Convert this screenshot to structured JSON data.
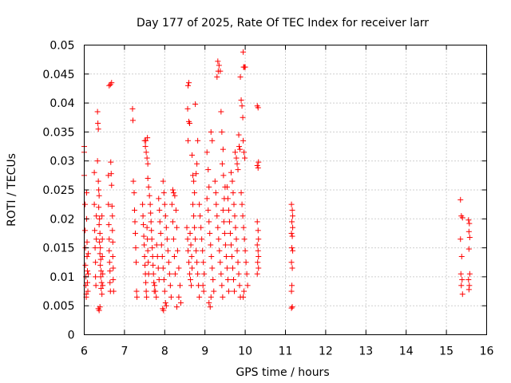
{
  "chart_data": {
    "type": "scatter",
    "title": "Day 177 of 2025, Rate Of TEC Index for receiver larr",
    "xlabel": "GPS time / hours",
    "ylabel": "ROTI / TECUs",
    "xlim": [
      6,
      16
    ],
    "ylim": [
      0,
      0.05
    ],
    "x_ticks": [
      "6",
      "7",
      "8",
      "9",
      "10",
      "11",
      "12",
      "13",
      "14",
      "15",
      "16"
    ],
    "y_ticks": [
      "0",
      "0.005",
      "0.01",
      "0.015",
      "0.02",
      "0.025",
      "0.03",
      "0.035",
      "0.04",
      "0.045",
      "0.05"
    ],
    "grid": true,
    "marker": "+",
    "color": "#ff0000",
    "points": [
      [
        6.0,
        0.0325
      ],
      [
        6.0,
        0.0315
      ],
      [
        6.0,
        0.0275
      ],
      [
        6.02,
        0.0225
      ],
      [
        6.02,
        0.018
      ],
      [
        6.03,
        0.015
      ],
      [
        6.03,
        0.012
      ],
      [
        6.04,
        0.01
      ],
      [
        6.04,
        0.0085
      ],
      [
        6.05,
        0.007
      ],
      [
        6.05,
        0.0065
      ],
      [
        6.06,
        0.0245
      ],
      [
        6.06,
        0.02
      ],
      [
        6.07,
        0.016
      ],
      [
        6.07,
        0.0135
      ],
      [
        6.08,
        0.011
      ],
      [
        6.08,
        0.009
      ],
      [
        6.09,
        0.0075
      ],
      [
        6.1,
        0.014
      ],
      [
        6.1,
        0.0105
      ],
      [
        6.25,
        0.028
      ],
      [
        6.25,
        0.0225
      ],
      [
        6.26,
        0.018
      ],
      [
        6.27,
        0.015
      ],
      [
        6.28,
        0.0125
      ],
      [
        6.28,
        0.01
      ],
      [
        6.29,
        0.0085
      ],
      [
        6.3,
        0.0205
      ],
      [
        6.3,
        0.0165
      ],
      [
        6.33,
        0.0385
      ],
      [
        6.34,
        0.0365
      ],
      [
        6.35,
        0.0355
      ],
      [
        6.33,
        0.03
      ],
      [
        6.35,
        0.0265
      ],
      [
        6.36,
        0.025
      ],
      [
        6.37,
        0.024
      ],
      [
        6.36,
        0.022
      ],
      [
        6.38,
        0.02
      ],
      [
        6.37,
        0.019
      ],
      [
        6.39,
        0.0175
      ],
      [
        6.38,
        0.016
      ],
      [
        6.4,
        0.015
      ],
      [
        6.39,
        0.014
      ],
      [
        6.41,
        0.013
      ],
      [
        6.4,
        0.012
      ],
      [
        6.42,
        0.011
      ],
      [
        6.41,
        0.01
      ],
      [
        6.43,
        0.009
      ],
      [
        6.42,
        0.008
      ],
      [
        6.44,
        0.007
      ],
      [
        6.35,
        0.0045
      ],
      [
        6.37,
        0.0042
      ],
      [
        6.39,
        0.0048
      ],
      [
        6.44,
        0.0205
      ],
      [
        6.45,
        0.0165
      ],
      [
        6.45,
        0.0135
      ],
      [
        6.46,
        0.0105
      ],
      [
        6.46,
        0.0085
      ],
      [
        6.6,
        0.0275
      ],
      [
        6.6,
        0.0225
      ],
      [
        6.61,
        0.019
      ],
      [
        6.62,
        0.0165
      ],
      [
        6.62,
        0.0145
      ],
      [
        6.63,
        0.0125
      ],
      [
        6.64,
        0.011
      ],
      [
        6.64,
        0.009
      ],
      [
        6.65,
        0.0075
      ],
      [
        6.62,
        0.043
      ],
      [
        6.65,
        0.0432
      ],
      [
        6.68,
        0.0435
      ],
      [
        6.66,
        0.0298
      ],
      [
        6.67,
        0.0278
      ],
      [
        6.68,
        0.0258
      ],
      [
        6.69,
        0.0222
      ],
      [
        6.7,
        0.0205
      ],
      [
        6.7,
        0.018
      ],
      [
        6.71,
        0.016
      ],
      [
        6.71,
        0.0135
      ],
      [
        6.72,
        0.0115
      ],
      [
        6.72,
        0.0095
      ],
      [
        6.73,
        0.0075
      ],
      [
        7.2,
        0.039
      ],
      [
        7.21,
        0.037
      ],
      [
        7.22,
        0.0265
      ],
      [
        7.24,
        0.0245
      ],
      [
        7.25,
        0.0215
      ],
      [
        7.26,
        0.0195
      ],
      [
        7.27,
        0.0175
      ],
      [
        7.28,
        0.015
      ],
      [
        7.29,
        0.0125
      ],
      [
        7.3,
        0.0075
      ],
      [
        7.31,
        0.0065
      ],
      [
        7.45,
        0.0225
      ],
      [
        7.46,
        0.0205
      ],
      [
        7.47,
        0.019
      ],
      [
        7.48,
        0.017
      ],
      [
        7.49,
        0.0155
      ],
      [
        7.5,
        0.0135
      ],
      [
        7.51,
        0.012
      ],
      [
        7.52,
        0.0105
      ],
      [
        7.53,
        0.009
      ],
      [
        7.54,
        0.0075
      ],
      [
        7.55,
        0.0065
      ],
      [
        7.56,
        0.0185
      ],
      [
        7.57,
        0.0165
      ],
      [
        7.58,
        0.0145
      ],
      [
        7.59,
        0.0125
      ],
      [
        7.6,
        0.0105
      ],
      [
        7.5,
        0.0335
      ],
      [
        7.52,
        0.0325
      ],
      [
        7.54,
        0.0315
      ],
      [
        7.56,
        0.0305
      ],
      [
        7.58,
        0.0295
      ],
      [
        7.53,
        0.0335
      ],
      [
        7.57,
        0.034
      ],
      [
        7.58,
        0.027
      ],
      [
        7.6,
        0.0255
      ],
      [
        7.62,
        0.024
      ],
      [
        7.64,
        0.0225
      ],
      [
        7.65,
        0.021
      ],
      [
        7.66,
        0.0195
      ],
      [
        7.67,
        0.018
      ],
      [
        7.68,
        0.0165
      ],
      [
        7.69,
        0.015
      ],
      [
        7.7,
        0.0135
      ],
      [
        7.71,
        0.012
      ],
      [
        7.72,
        0.0105
      ],
      [
        7.73,
        0.009
      ],
      [
        7.74,
        0.0075
      ],
      [
        7.75,
        0.0085
      ],
      [
        7.77,
        0.0075
      ],
      [
        7.79,
        0.0065
      ],
      [
        7.8,
        0.0155
      ],
      [
        7.82,
        0.0135
      ],
      [
        7.84,
        0.0115
      ],
      [
        7.86,
        0.0095
      ],
      [
        7.85,
        0.0235
      ],
      [
        7.87,
        0.0215
      ],
      [
        7.88,
        0.0195
      ],
      [
        7.9,
        0.0175
      ],
      [
        7.92,
        0.0155
      ],
      [
        7.94,
        0.0135
      ],
      [
        7.96,
        0.0115
      ],
      [
        7.98,
        0.0095
      ],
      [
        8.0,
        0.0075
      ],
      [
        8.02,
        0.0055
      ],
      [
        8.04,
        0.005
      ],
      [
        7.95,
        0.0045
      ],
      [
        7.97,
        0.0042
      ],
      [
        7.96,
        0.0265
      ],
      [
        7.98,
        0.0245
      ],
      [
        8.0,
        0.0225
      ],
      [
        8.02,
        0.0205
      ],
      [
        8.04,
        0.0185
      ],
      [
        8.06,
        0.0165
      ],
      [
        8.08,
        0.0145
      ],
      [
        8.1,
        0.0125
      ],
      [
        8.12,
        0.0105
      ],
      [
        8.14,
        0.0085
      ],
      [
        8.16,
        0.0065
      ],
      [
        8.18,
        0.0225
      ],
      [
        8.2,
        0.0195
      ],
      [
        8.22,
        0.0165
      ],
      [
        8.24,
        0.0135
      ],
      [
        8.26,
        0.0105
      ],
      [
        8.2,
        0.025
      ],
      [
        8.22,
        0.0245
      ],
      [
        8.25,
        0.024
      ],
      [
        8.28,
        0.0215
      ],
      [
        8.3,
        0.0185
      ],
      [
        8.32,
        0.0145
      ],
      [
        8.35,
        0.0115
      ],
      [
        8.38,
        0.0085
      ],
      [
        8.4,
        0.0055
      ],
      [
        8.35,
        0.0065
      ],
      [
        8.3,
        0.0048
      ],
      [
        8.58,
        0.043
      ],
      [
        8.6,
        0.0435
      ],
      [
        8.57,
        0.039
      ],
      [
        8.6,
        0.0368
      ],
      [
        8.62,
        0.0365
      ],
      [
        8.58,
        0.0335
      ],
      [
        8.55,
        0.0185
      ],
      [
        8.57,
        0.0165
      ],
      [
        8.58,
        0.0145
      ],
      [
        8.6,
        0.0125
      ],
      [
        8.62,
        0.0105
      ],
      [
        8.64,
        0.0095
      ],
      [
        8.66,
        0.0085
      ],
      [
        8.63,
        0.0175
      ],
      [
        8.65,
        0.0155
      ],
      [
        8.67,
        0.0135
      ],
      [
        8.68,
        0.0115
      ],
      [
        8.68,
        0.031
      ],
      [
        8.7,
        0.0275
      ],
      [
        8.72,
        0.0265
      ],
      [
        8.74,
        0.0245
      ],
      [
        8.7,
        0.0225
      ],
      [
        8.72,
        0.0205
      ],
      [
        8.74,
        0.0185
      ],
      [
        8.76,
        0.0165
      ],
      [
        8.78,
        0.0145
      ],
      [
        8.8,
        0.0125
      ],
      [
        8.82,
        0.0105
      ],
      [
        8.84,
        0.0085
      ],
      [
        8.86,
        0.0065
      ],
      [
        8.8,
        0.0295
      ],
      [
        8.78,
        0.0278
      ],
      [
        8.76,
        0.0398
      ],
      [
        8.82,
        0.0335
      ],
      [
        8.86,
        0.0225
      ],
      [
        8.88,
        0.0205
      ],
      [
        8.9,
        0.0185
      ],
      [
        8.92,
        0.0165
      ],
      [
        8.94,
        0.0145
      ],
      [
        8.96,
        0.0125
      ],
      [
        8.98,
        0.0105
      ],
      [
        8.95,
        0.0085
      ],
      [
        8.97,
        0.0075
      ],
      [
        9.05,
        0.0315
      ],
      [
        9.08,
        0.0285
      ],
      [
        9.1,
        0.0255
      ],
      [
        9.05,
        0.0235
      ],
      [
        9.08,
        0.0215
      ],
      [
        9.1,
        0.0195
      ],
      [
        9.12,
        0.0175
      ],
      [
        9.14,
        0.0155
      ],
      [
        9.16,
        0.0135
      ],
      [
        9.18,
        0.0115
      ],
      [
        9.2,
        0.0095
      ],
      [
        9.22,
        0.0075
      ],
      [
        9.1,
        0.0055
      ],
      [
        9.13,
        0.0048
      ],
      [
        9.15,
        0.0065
      ],
      [
        9.15,
        0.035
      ],
      [
        9.18,
        0.0335
      ],
      [
        9.25,
        0.0265
      ],
      [
        9.27,
        0.0245
      ],
      [
        9.28,
        0.0225
      ],
      [
        9.3,
        0.0205
      ],
      [
        9.32,
        0.0185
      ],
      [
        9.34,
        0.0165
      ],
      [
        9.36,
        0.0145
      ],
      [
        9.38,
        0.0125
      ],
      [
        9.4,
        0.0105
      ],
      [
        9.42,
        0.0085
      ],
      [
        9.44,
        0.0065
      ],
      [
        9.3,
        0.0445
      ],
      [
        9.33,
        0.0455
      ],
      [
        9.35,
        0.0465
      ],
      [
        9.32,
        0.0472
      ],
      [
        9.38,
        0.0455
      ],
      [
        9.4,
        0.0385
      ],
      [
        9.42,
        0.035
      ],
      [
        9.45,
        0.032
      ],
      [
        9.43,
        0.0295
      ],
      [
        9.46,
        0.0275
      ],
      [
        9.5,
        0.0255
      ],
      [
        9.48,
        0.0235
      ],
      [
        9.45,
        0.0215
      ],
      [
        9.47,
        0.0195
      ],
      [
        9.49,
        0.0175
      ],
      [
        9.51,
        0.0155
      ],
      [
        9.53,
        0.0135
      ],
      [
        9.55,
        0.0115
      ],
      [
        9.57,
        0.0095
      ],
      [
        9.59,
        0.0075
      ],
      [
        9.55,
        0.0255
      ],
      [
        9.57,
        0.0235
      ],
      [
        9.59,
        0.0215
      ],
      [
        9.61,
        0.0195
      ],
      [
        9.63,
        0.0175
      ],
      [
        9.65,
        0.0155
      ],
      [
        9.67,
        0.0135
      ],
      [
        9.69,
        0.0115
      ],
      [
        9.71,
        0.0095
      ],
      [
        9.73,
        0.0075
      ],
      [
        9.65,
        0.028
      ],
      [
        9.68,
        0.0265
      ],
      [
        9.7,
        0.0245
      ],
      [
        9.72,
        0.0225
      ],
      [
        9.74,
        0.0205
      ],
      [
        9.76,
        0.0185
      ],
      [
        9.78,
        0.0165
      ],
      [
        9.8,
        0.0145
      ],
      [
        9.82,
        0.0125
      ],
      [
        9.84,
        0.0105
      ],
      [
        9.86,
        0.0085
      ],
      [
        9.88,
        0.0065
      ],
      [
        9.75,
        0.0315
      ],
      [
        9.78,
        0.0305
      ],
      [
        9.8,
        0.0295
      ],
      [
        9.82,
        0.0285
      ],
      [
        9.85,
        0.0325
      ],
      [
        9.87,
        0.032
      ],
      [
        9.84,
        0.0345
      ],
      [
        9.9,
        0.0245
      ],
      [
        9.92,
        0.0225
      ],
      [
        9.94,
        0.0205
      ],
      [
        9.96,
        0.0185
      ],
      [
        9.98,
        0.0165
      ],
      [
        10.0,
        0.0145
      ],
      [
        10.02,
        0.0125
      ],
      [
        10.04,
        0.0105
      ],
      [
        10.06,
        0.0085
      ],
      [
        9.95,
        0.0065
      ],
      [
        9.97,
        0.0075
      ],
      [
        9.88,
        0.0445
      ],
      [
        9.9,
        0.0405
      ],
      [
        9.92,
        0.0395
      ],
      [
        9.94,
        0.0375
      ],
      [
        9.95,
        0.0488
      ],
      [
        9.96,
        0.0462
      ],
      [
        9.98,
        0.0462
      ],
      [
        10.0,
        0.0462
      ],
      [
        9.95,
        0.0335
      ],
      [
        9.97,
        0.0315
      ],
      [
        9.99,
        0.0305
      ],
      [
        10.3,
        0.0395
      ],
      [
        10.32,
        0.0392
      ],
      [
        10.33,
        0.0298
      ],
      [
        10.3,
        0.0292
      ],
      [
        10.32,
        0.0288
      ],
      [
        10.3,
        0.0195
      ],
      [
        10.32,
        0.018
      ],
      [
        10.33,
        0.0165
      ],
      [
        10.3,
        0.0155
      ],
      [
        10.32,
        0.0145
      ],
      [
        10.33,
        0.0135
      ],
      [
        10.31,
        0.0125
      ],
      [
        10.33,
        0.0115
      ],
      [
        10.3,
        0.0105
      ],
      [
        11.15,
        0.0225
      ],
      [
        11.17,
        0.0215
      ],
      [
        11.18,
        0.0205
      ],
      [
        11.16,
        0.0195
      ],
      [
        11.18,
        0.0185
      ],
      [
        11.15,
        0.0175
      ],
      [
        11.17,
        0.017
      ],
      [
        11.16,
        0.015
      ],
      [
        11.18,
        0.0145
      ],
      [
        11.15,
        0.0125
      ],
      [
        11.17,
        0.0115
      ],
      [
        11.16,
        0.0085
      ],
      [
        11.15,
        0.0075
      ],
      [
        11.17,
        0.0048
      ],
      [
        11.15,
        0.0046
      ],
      [
        15.35,
        0.0233
      ],
      [
        15.37,
        0.0205
      ],
      [
        15.4,
        0.0202
      ],
      [
        15.35,
        0.0165
      ],
      [
        15.38,
        0.0135
      ],
      [
        15.36,
        0.0105
      ],
      [
        15.39,
        0.0095
      ],
      [
        15.37,
        0.0085
      ],
      [
        15.4,
        0.007
      ],
      [
        15.55,
        0.0198
      ],
      [
        15.57,
        0.0192
      ],
      [
        15.56,
        0.0178
      ],
      [
        15.58,
        0.0168
      ],
      [
        15.56,
        0.0148
      ],
      [
        15.58,
        0.0105
      ],
      [
        15.55,
        0.0095
      ],
      [
        15.57,
        0.0085
      ],
      [
        15.56,
        0.0078
      ]
    ]
  }
}
